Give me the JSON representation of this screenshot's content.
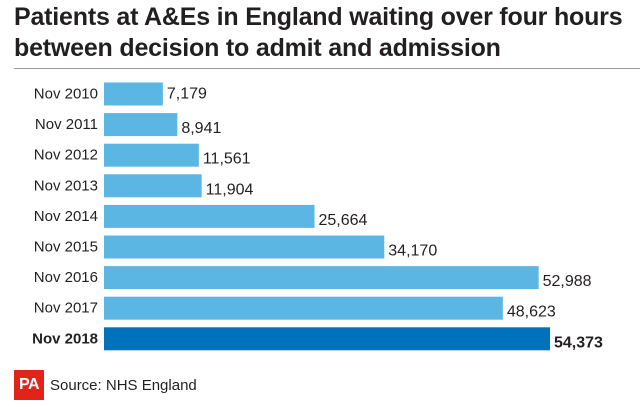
{
  "title": {
    "line1": "Patients at A&Es in England waiting over four hours",
    "line2": "between decision to admit and admission"
  },
  "source": "Source: NHS England",
  "logo_text": "PA",
  "colors": {
    "bar": "#5cb6e3",
    "bar_highlight": "#0072bb",
    "logo": "#e2231a",
    "text": "#231f20"
  },
  "chart_data": {
    "type": "bar",
    "orientation": "horizontal",
    "categories": [
      "Nov 2010",
      "Nov 2011",
      "Nov 2012",
      "Nov 2013",
      "Nov 2014",
      "Nov 2015",
      "Nov 2016",
      "Nov 2017",
      "Nov 2018"
    ],
    "values": [
      7179,
      8941,
      11561,
      11904,
      25664,
      34170,
      52988,
      48623,
      54373
    ],
    "value_labels": [
      "7,179",
      "8,941",
      "11,561",
      "11,904",
      "25,664",
      "34,170",
      "52,988",
      "48,623",
      "54,373"
    ],
    "highlight_category": "Nov 2018",
    "title": "Patients at A&Es in England waiting over four hours between decision to admit and admission",
    "xlabel": "",
    "ylabel": "",
    "xlim": [
      0,
      54373
    ],
    "grid": false,
    "legend": "none"
  }
}
